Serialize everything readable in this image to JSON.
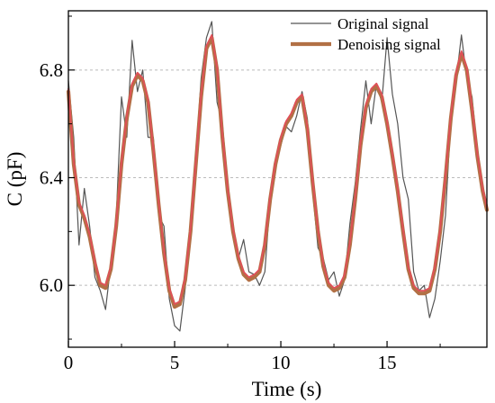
{
  "chart_data": {
    "type": "line",
    "title": "",
    "xlabel": "Time (s)",
    "ylabel": "C (pF)",
    "xlim": [
      0,
      19.7
    ],
    "ylim": [
      5.77,
      7.02
    ],
    "x_ticks": [
      0,
      5,
      10,
      15
    ],
    "y_ticks": [
      6.0,
      6.4,
      6.8
    ],
    "x_tick_labels": [
      "0",
      "5",
      "10",
      "15"
    ],
    "y_tick_labels": [
      "6.0",
      "6.4",
      "6.8"
    ],
    "grid": "horizontal dashed",
    "legend_position": "top-right",
    "series": [
      {
        "name": "Original signal",
        "color": "#555555",
        "x": [
          0,
          0.25,
          0.5,
          0.75,
          1.0,
          1.25,
          1.5,
          1.75,
          2.0,
          2.25,
          2.5,
          2.75,
          3.0,
          3.25,
          3.5,
          3.75,
          4.0,
          4.25,
          4.5,
          4.75,
          5.0,
          5.25,
          5.5,
          5.75,
          6.0,
          6.25,
          6.5,
          6.75,
          7.0,
          7.25,
          7.5,
          7.75,
          8.0,
          8.25,
          8.5,
          8.75,
          9.0,
          9.25,
          9.5,
          9.75,
          10.0,
          10.25,
          10.5,
          10.75,
          11.0,
          11.25,
          11.5,
          11.75,
          12.0,
          12.25,
          12.5,
          12.75,
          13.0,
          13.25,
          13.5,
          13.75,
          14.0,
          14.25,
          14.5,
          14.75,
          15.0,
          15.25,
          15.5,
          15.75,
          16.0,
          16.25,
          16.5,
          16.75,
          17.0,
          17.25,
          17.5,
          17.75,
          18.0,
          18.25,
          18.5,
          18.75,
          19.0,
          19.25,
          19.5,
          19.7
        ],
        "y": [
          6.76,
          6.55,
          6.15,
          6.36,
          6.22,
          6.03,
          5.98,
          5.91,
          6.08,
          6.25,
          6.7,
          6.55,
          6.91,
          6.72,
          6.8,
          6.55,
          6.55,
          6.26,
          6.22,
          5.95,
          5.85,
          5.83,
          5.99,
          6.21,
          6.48,
          6.77,
          6.92,
          6.98,
          6.68,
          6.6,
          6.38,
          6.22,
          6.1,
          6.17,
          6.05,
          6.04,
          6.0,
          6.05,
          6.32,
          6.44,
          6.52,
          6.59,
          6.57,
          6.63,
          6.72,
          6.62,
          6.35,
          6.14,
          6.1,
          6.02,
          6.05,
          5.96,
          6.02,
          6.23,
          6.38,
          6.58,
          6.76,
          6.6,
          6.75,
          6.68,
          6.92,
          6.71,
          6.6,
          6.4,
          6.32,
          6.05,
          5.98,
          6.0,
          5.88,
          5.95,
          6.09,
          6.26,
          6.62,
          6.76,
          6.93,
          6.77,
          6.7,
          6.5,
          6.37,
          6.3
        ]
      },
      {
        "name": "Denoising signal",
        "color": "#b27045",
        "x": [
          0,
          0.25,
          0.5,
          0.75,
          1.0,
          1.25,
          1.5,
          1.75,
          2.0,
          2.25,
          2.5,
          2.75,
          3.0,
          3.25,
          3.5,
          3.75,
          4.0,
          4.25,
          4.5,
          4.75,
          5.0,
          5.25,
          5.5,
          5.75,
          6.0,
          6.25,
          6.5,
          6.75,
          7.0,
          7.25,
          7.5,
          7.75,
          8.0,
          8.25,
          8.5,
          8.75,
          9.0,
          9.25,
          9.5,
          9.75,
          10.0,
          10.25,
          10.5,
          10.75,
          11.0,
          11.25,
          11.5,
          11.75,
          12.0,
          12.25,
          12.5,
          12.75,
          13.0,
          13.25,
          13.5,
          13.75,
          14.0,
          14.25,
          14.5,
          14.75,
          15.0,
          15.25,
          15.5,
          15.75,
          16.0,
          16.25,
          16.5,
          16.75,
          17.0,
          17.25,
          17.5,
          17.75,
          18.0,
          18.25,
          18.5,
          18.75,
          19.0,
          19.25,
          19.5,
          19.7
        ],
        "y": [
          6.72,
          6.45,
          6.3,
          6.25,
          6.18,
          6.08,
          6.0,
          5.99,
          6.06,
          6.22,
          6.45,
          6.62,
          6.74,
          6.78,
          6.76,
          6.68,
          6.5,
          6.3,
          6.12,
          5.98,
          5.92,
          5.93,
          6.02,
          6.2,
          6.45,
          6.7,
          6.88,
          6.92,
          6.8,
          6.55,
          6.35,
          6.2,
          6.1,
          6.04,
          6.02,
          6.03,
          6.05,
          6.15,
          6.32,
          6.45,
          6.54,
          6.6,
          6.63,
          6.68,
          6.7,
          6.58,
          6.38,
          6.2,
          6.07,
          6.0,
          5.98,
          5.99,
          6.03,
          6.15,
          6.32,
          6.52,
          6.66,
          6.72,
          6.74,
          6.7,
          6.6,
          6.48,
          6.35,
          6.2,
          6.06,
          5.99,
          5.97,
          5.97,
          5.98,
          6.06,
          6.2,
          6.4,
          6.62,
          6.78,
          6.86,
          6.8,
          6.65,
          6.48,
          6.35,
          6.28
        ]
      },
      {
        "name": "",
        "color": "#e05058",
        "x": [
          0,
          0.25,
          0.5,
          0.75,
          1.0,
          1.25,
          1.5,
          1.75,
          2.0,
          2.25,
          2.5,
          2.75,
          3.0,
          3.25,
          3.5,
          3.75,
          4.0,
          4.25,
          4.5,
          4.75,
          5.0,
          5.25,
          5.5,
          5.75,
          6.0,
          6.25,
          6.5,
          6.75,
          7.0,
          7.25,
          7.5,
          7.75,
          8.0,
          8.25,
          8.5,
          8.75,
          9.0,
          9.25,
          9.5,
          9.75,
          10.0,
          10.25,
          10.5,
          10.75,
          11.0,
          11.25,
          11.5,
          11.75,
          12.0,
          12.25,
          12.5,
          12.75,
          13.0,
          13.25,
          13.5,
          13.75,
          14.0,
          14.25,
          14.5,
          14.75,
          15.0,
          15.25,
          15.5,
          15.75,
          16.0,
          16.25,
          16.5,
          16.75,
          17.0,
          17.25,
          17.5,
          17.75,
          18.0,
          18.25,
          18.5,
          18.75,
          19.0,
          19.25,
          19.5,
          19.7
        ],
        "y": [
          6.73,
          6.46,
          6.31,
          6.26,
          6.19,
          6.09,
          6.01,
          6.0,
          6.07,
          6.23,
          6.46,
          6.63,
          6.75,
          6.79,
          6.77,
          6.69,
          6.51,
          6.31,
          6.13,
          5.99,
          5.93,
          5.94,
          6.03,
          6.21,
          6.46,
          6.71,
          6.89,
          6.93,
          6.81,
          6.56,
          6.36,
          6.21,
          6.11,
          6.05,
          6.03,
          6.04,
          6.06,
          6.16,
          6.33,
          6.46,
          6.55,
          6.61,
          6.64,
          6.69,
          6.71,
          6.59,
          6.39,
          6.21,
          6.08,
          6.01,
          5.99,
          6.0,
          6.04,
          6.16,
          6.33,
          6.53,
          6.67,
          6.73,
          6.75,
          6.71,
          6.61,
          6.49,
          6.36,
          6.21,
          6.07,
          6.0,
          5.98,
          5.98,
          5.99,
          6.07,
          6.21,
          6.41,
          6.63,
          6.79,
          6.87,
          6.81,
          6.66,
          6.49,
          6.36,
          6.29
        ]
      }
    ]
  }
}
